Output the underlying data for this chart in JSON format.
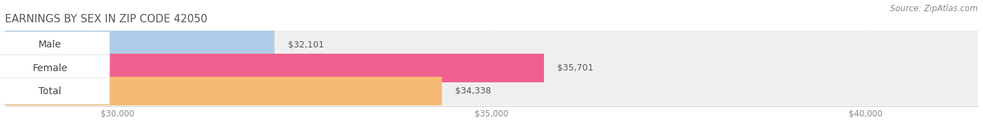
{
  "title": "EARNINGS BY SEX IN ZIP CODE 42050",
  "source": "Source: ZipAtlas.com",
  "categories": [
    "Male",
    "Female",
    "Total"
  ],
  "values": [
    32101,
    35701,
    34338
  ],
  "labels": [
    "$32,101",
    "$35,701",
    "$34,338"
  ],
  "bar_colors": [
    "#aecde8",
    "#f0608e",
    "#f5ba72"
  ],
  "bar_bg_color": "#efefef",
  "xmin": 28500,
  "xlim": [
    28500,
    41500
  ],
  "xticks": [
    30000,
    35000,
    40000
  ],
  "xtick_labels": [
    "$30,000",
    "$35,000",
    "$40,000"
  ],
  "title_fontsize": 11,
  "source_fontsize": 8.5,
  "label_fontsize": 9,
  "category_fontsize": 10,
  "bar_height": 0.62,
  "background_color": "#ffffff",
  "title_color": "#555555",
  "source_color": "#888888",
  "label_color": "#555555",
  "category_color": "#444444",
  "tick_color": "#888888"
}
